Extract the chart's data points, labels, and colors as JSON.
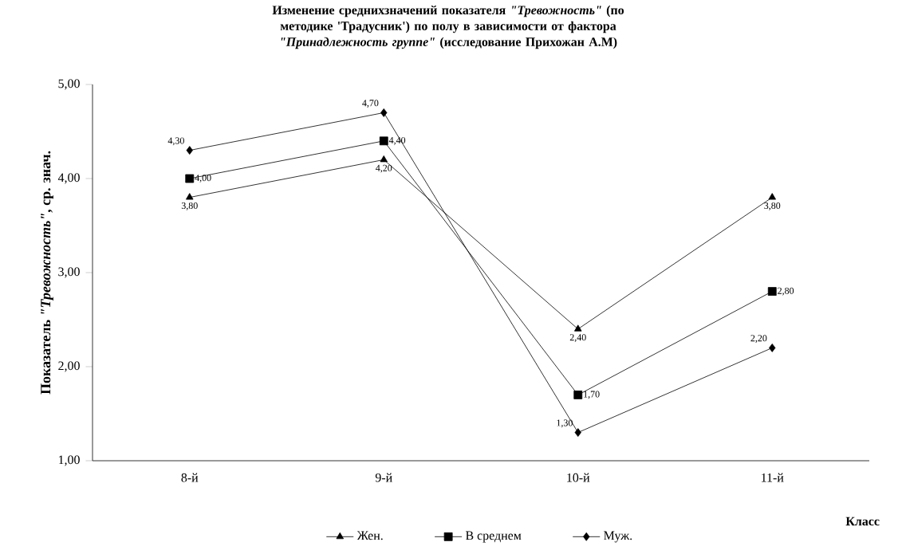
{
  "chart_data": {
    "type": "line",
    "title": "Изменение среднихзначений показателя *\"Тревожность\"* (по методике 'Традусник') по полу в зависимости от фактора *\"Принадлежность группе\"* (исследование Прихожан А.М)",
    "ylabel": "Показатель *\"Тревожность\"*, ср. знач.",
    "xlabel": "Класс",
    "categories": [
      "8-й",
      "9-й",
      "10-й",
      "11-й"
    ],
    "ylim": [
      1,
      5
    ],
    "yticks": [
      {
        "value": 1,
        "label": "1,00"
      },
      {
        "value": 2,
        "label": "2,00"
      },
      {
        "value": 3,
        "label": "3,00"
      },
      {
        "value": 4,
        "label": "4,00"
      },
      {
        "value": 5,
        "label": "5,00"
      }
    ],
    "legend": "bottom",
    "grid": false,
    "series": [
      {
        "name": "Жен.",
        "color": "#000000",
        "marker": "triangle",
        "values": [
          3.8,
          4.2,
          2.4,
          3.8
        ],
        "value_labels": [
          "3,80",
          "4,20",
          "2,40",
          "3,80"
        ]
      },
      {
        "name": "В среднем",
        "color": "#000000",
        "marker": "square",
        "values": [
          4.0,
          4.4,
          1.7,
          2.8
        ],
        "value_labels": [
          "4,00",
          "4,40",
          "1,70",
          "2,80"
        ]
      },
      {
        "name": "Муж.",
        "color": "#000000",
        "marker": "diamond",
        "values": [
          4.3,
          4.7,
          1.3,
          2.2
        ],
        "value_labels": [
          "4,30",
          "4,70",
          "1,30",
          "2,20"
        ]
      }
    ]
  }
}
